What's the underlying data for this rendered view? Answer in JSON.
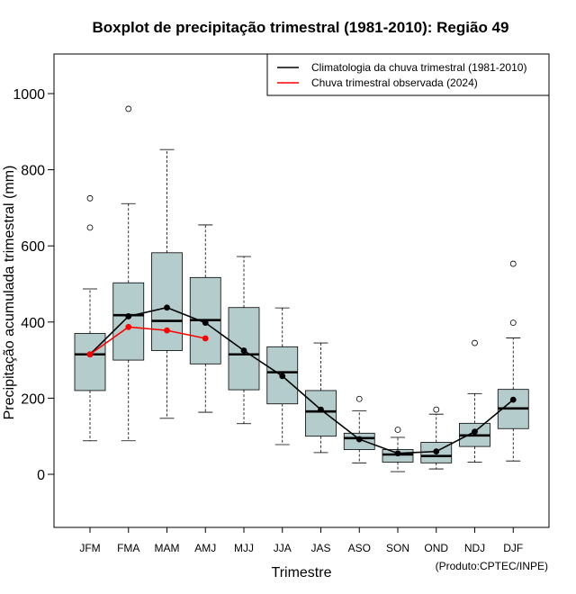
{
  "chart_data": {
    "type": "boxplot",
    "title": "Boxplot de precipitação trimestral (1981-2010): Região 49",
    "xlabel": "Trimestre",
    "ylabel": "Precipitação acumulada trimestral (mm)",
    "credit": "(Produto:CPTEC/INPE)",
    "ylim": [
      -140,
      1110
    ],
    "yticks": [
      0,
      200,
      400,
      600,
      800,
      1000
    ],
    "categories": [
      "JFM",
      "FMA",
      "MAM",
      "AMJ",
      "MJJ",
      "JJA",
      "JAS",
      "ASO",
      "SON",
      "OND",
      "NDJ",
      "DJF"
    ],
    "box_color": "#b4cccc",
    "boxes": [
      {
        "whisker_low": 88,
        "q1": 220,
        "median": 315,
        "q3": 370,
        "whisker_high": 487,
        "outliers": [
          648,
          725
        ]
      },
      {
        "whisker_low": 88,
        "q1": 300,
        "median": 418,
        "q3": 503,
        "whisker_high": 711,
        "outliers": [
          960
        ]
      },
      {
        "whisker_low": 147,
        "q1": 325,
        "median": 403,
        "q3": 582,
        "whisker_high": 853,
        "outliers": []
      },
      {
        "whisker_low": 163,
        "q1": 290,
        "median": 405,
        "q3": 517,
        "whisker_high": 655,
        "outliers": []
      },
      {
        "whisker_low": 133,
        "q1": 222,
        "median": 315,
        "q3": 438,
        "whisker_high": 572,
        "outliers": []
      },
      {
        "whisker_low": 78,
        "q1": 185,
        "median": 268,
        "q3": 335,
        "whisker_high": 437,
        "outliers": []
      },
      {
        "whisker_low": 57,
        "q1": 100,
        "median": 165,
        "q3": 220,
        "whisker_high": 345,
        "outliers": []
      },
      {
        "whisker_low": 30,
        "q1": 65,
        "median": 95,
        "q3": 108,
        "whisker_high": 167,
        "outliers": [
          198
        ]
      },
      {
        "whisker_low": 7,
        "q1": 32,
        "median": 52,
        "q3": 65,
        "whisker_high": 97,
        "outliers": [
          117
        ]
      },
      {
        "whisker_low": 14,
        "q1": 30,
        "median": 48,
        "q3": 84,
        "whisker_high": 158,
        "outliers": [
          170
        ]
      },
      {
        "whisker_low": 32,
        "q1": 73,
        "median": 102,
        "q3": 134,
        "whisker_high": 212,
        "outliers": [
          345
        ]
      },
      {
        "whisker_low": 35,
        "q1": 120,
        "median": 173,
        "q3": 223,
        "whisker_high": 358,
        "outliers": [
          398,
          553
        ]
      }
    ],
    "series": [
      {
        "name": "Climatologia da chuva trimestral (1981-2010)",
        "color": "#000000",
        "values": [
          315,
          415,
          438,
          398,
          325,
          258,
          170,
          92,
          55,
          60,
          112,
          196
        ]
      },
      {
        "name": "Chuva trimestral observada (2024)",
        "color": "#ff0000",
        "values": [
          315,
          387,
          378,
          357
        ]
      }
    ],
    "legend_position": "top-right"
  }
}
